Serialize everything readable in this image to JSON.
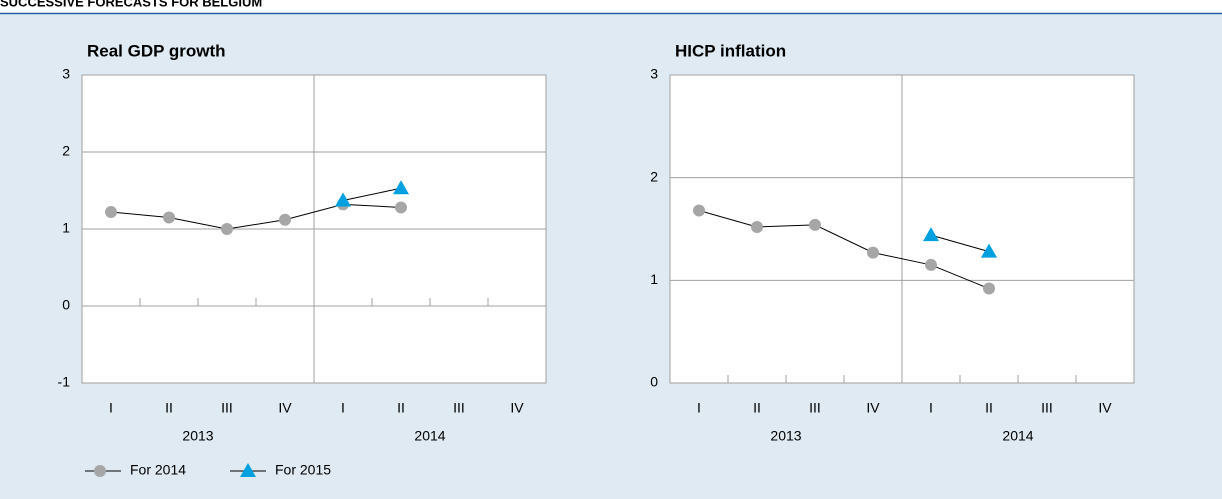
{
  "page_title": "SUCCESSIVE FORECASTS FOR BELGIUM",
  "chart_data": [
    {
      "type": "line",
      "title": "Real GDP growth",
      "categories": [
        "I",
        "II",
        "III",
        "IV",
        "I",
        "II",
        "III",
        "IV"
      ],
      "category_groups": [
        "2013",
        "2014"
      ],
      "ylim": [
        -1,
        3
      ],
      "yticks": [
        -1,
        0,
        1,
        2,
        3
      ],
      "grid": true,
      "series": [
        {
          "name": "For 2014",
          "color": "#a6a6a6",
          "marker": "circle",
          "values": [
            1.22,
            1.15,
            1.0,
            1.12,
            1.32,
            1.28,
            null,
            null
          ]
        },
        {
          "name": "For 2015",
          "color": "#00a0e0",
          "marker": "triangle",
          "values": [
            null,
            null,
            null,
            null,
            1.37,
            1.53,
            null,
            null
          ]
        }
      ]
    },
    {
      "type": "line",
      "title": "HICP inflation",
      "categories": [
        "I",
        "II",
        "III",
        "IV",
        "I",
        "II",
        "III",
        "IV"
      ],
      "category_groups": [
        "2013",
        "2014"
      ],
      "ylim": [
        0,
        3
      ],
      "yticks": [
        0,
        1,
        2,
        3
      ],
      "grid": true,
      "series": [
        {
          "name": "For 2014",
          "color": "#a6a6a6",
          "marker": "circle",
          "values": [
            1.68,
            1.52,
            1.54,
            1.27,
            1.15,
            0.92,
            null,
            null
          ]
        },
        {
          "name": "For 2015",
          "color": "#00a0e0",
          "marker": "triangle",
          "values": [
            null,
            null,
            null,
            null,
            1.44,
            1.28,
            null,
            null
          ]
        }
      ]
    }
  ]
}
